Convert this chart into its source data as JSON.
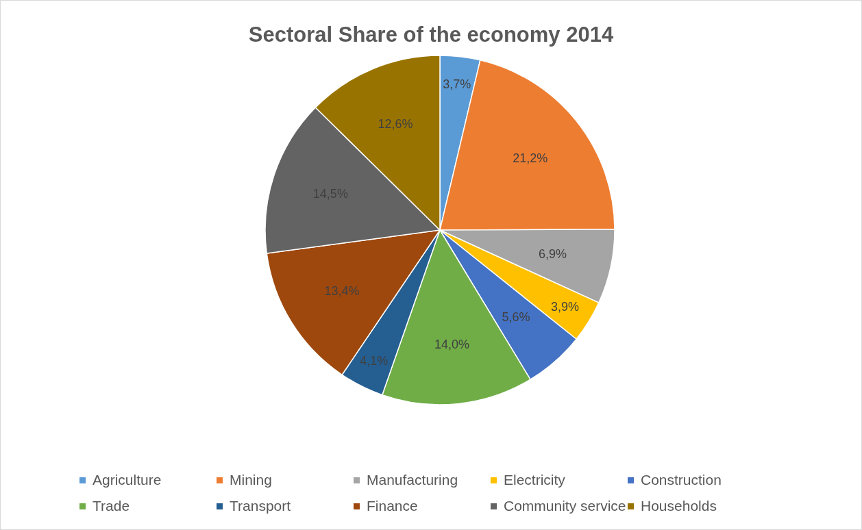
{
  "chart_data": {
    "type": "pie",
    "title": "Sectoral Share of the economy 2014",
    "categories": [
      "Agriculture",
      "Mining",
      "Manufacturing",
      "Electricity",
      "Construction",
      "Trade",
      "Transport",
      "Finance",
      "Community service",
      "Households"
    ],
    "values": [
      3.7,
      21.2,
      6.9,
      3.9,
      5.6,
      14.0,
      4.1,
      13.4,
      14.5,
      12.6
    ],
    "value_labels": [
      "3,7%",
      "21,2%",
      "6,9%",
      "3,9%",
      "5,6%",
      "14,0%",
      "4,1%",
      "13,4%",
      "14,5%",
      "12,6%"
    ],
    "colors": [
      "#5b9bd5",
      "#ed7d31",
      "#a5a5a5",
      "#ffc000",
      "#4472c4",
      "#70ad47",
      "#255e91",
      "#9e480e",
      "#636363",
      "#997300"
    ],
    "legend": "bottom"
  }
}
